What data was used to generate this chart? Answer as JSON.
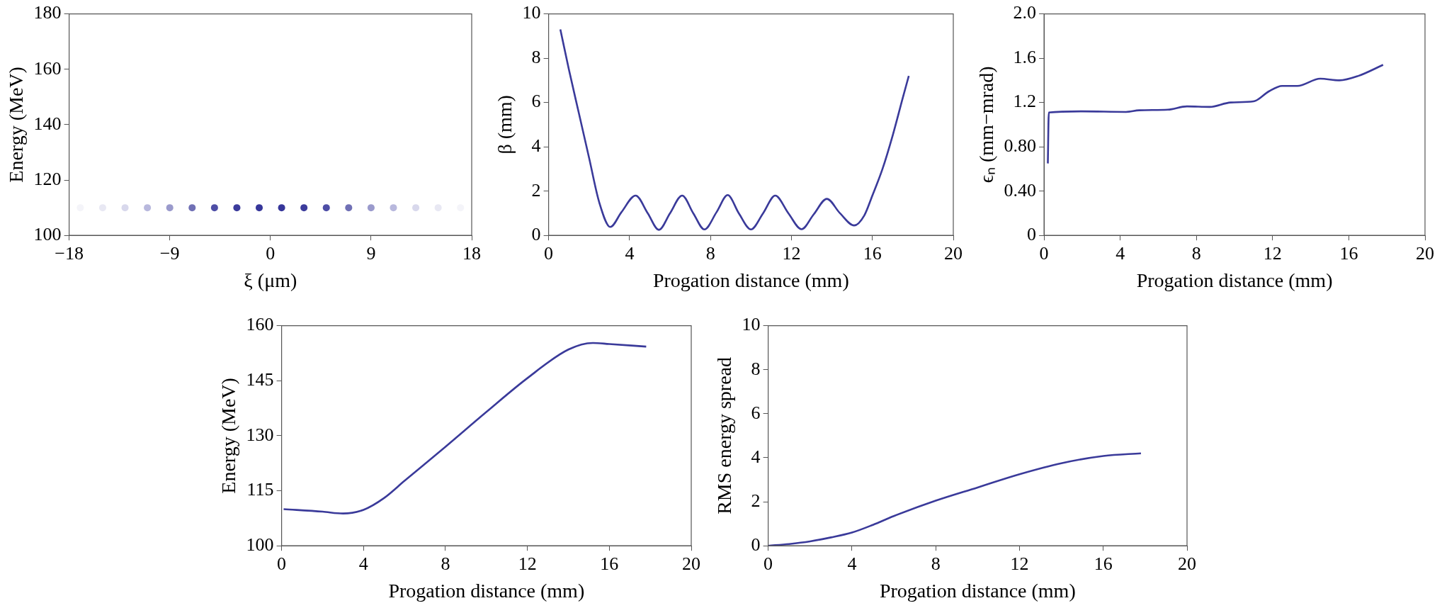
{
  "chart_data": [
    {
      "type": "scatter",
      "xlabel": "ξ (μm)",
      "ylabel": "Energy (MeV)",
      "marker": "circle",
      "x": [
        -17,
        -15,
        -13,
        -11,
        -9,
        -7,
        -5,
        -3,
        -1,
        1,
        3,
        5,
        7,
        9,
        11,
        13,
        15,
        17
      ],
      "values": [
        110,
        110,
        110,
        110,
        110,
        110,
        110,
        110,
        110,
        110,
        110,
        110,
        110,
        110,
        110,
        110,
        110,
        110
      ],
      "colors": [
        "#f4f4f9",
        "#e8e8f3",
        "#d8d8ec",
        "#b8b8dd",
        "#9a9acc",
        "#7070b5",
        "#4e4ea6",
        "#3c3c9c",
        "#36369a",
        "#36369a",
        "#3c3c9c",
        "#4e4ea6",
        "#7070b5",
        "#9a9acc",
        "#b8b8dd",
        "#d8d8ec",
        "#e8e8f3",
        "#f4f4f9"
      ],
      "xlim": [
        -18,
        18
      ],
      "xticks": [
        {
          "value": -18,
          "label": "−18"
        },
        {
          "value": -9,
          "label": "−9"
        },
        0,
        9,
        18
      ],
      "ylim": [
        100,
        180
      ],
      "yticks": [
        100,
        120,
        140,
        160,
        180
      ]
    },
    {
      "type": "line",
      "xlabel": "Progation distance (mm)",
      "ylabel": "β (mm)",
      "marker": "none",
      "color": "#3a3a9a",
      "x": [
        0.58,
        1,
        1.5,
        2,
        2.5,
        3.05,
        3.6,
        4.3,
        4.9,
        5.45,
        6,
        6.6,
        7.15,
        7.7,
        8.3,
        8.85,
        9.4,
        10,
        10.6,
        11.2,
        11.85,
        12.5,
        13.1,
        13.75,
        14.4,
        15.1,
        15.6,
        16,
        16.5,
        17,
        17.5,
        17.8
      ],
      "values": [
        9.3,
        7.5,
        5.5,
        3.5,
        1.5,
        0.38,
        1.05,
        1.8,
        1.0,
        0.25,
        1.0,
        1.8,
        1.0,
        0.27,
        1.05,
        1.82,
        1.0,
        0.27,
        1.0,
        1.8,
        1.0,
        0.28,
        0.95,
        1.65,
        1.0,
        0.45,
        0.9,
        1.8,
        3.0,
        4.5,
        6.2,
        7.2
      ],
      "xlim": [
        0,
        20
      ],
      "xticks": [
        0,
        4,
        8,
        12,
        16,
        20
      ],
      "ylim": [
        0,
        10
      ],
      "yticks": [
        0,
        2,
        4,
        6,
        8,
        10
      ]
    },
    {
      "type": "line",
      "xlabel": "Progation distance (mm)",
      "ylabel": "ϵₙ (mm−mrad)",
      "marker": "none",
      "color": "#3a3a9a",
      "x": [
        0.2,
        0.25,
        2,
        4.3,
        5,
        6.5,
        7.5,
        8.7,
        9.8,
        11,
        11.8,
        12.5,
        13.3,
        14.5,
        15.5,
        16.5,
        17.8
      ],
      "values": [
        0.65,
        1.11,
        1.12,
        1.115,
        1.13,
        1.135,
        1.165,
        1.16,
        1.2,
        1.21,
        1.3,
        1.35,
        1.35,
        1.415,
        1.4,
        1.44,
        1.54
      ],
      "xlim": [
        0,
        20
      ],
      "xticks": [
        0,
        4,
        8,
        12,
        16,
        20
      ],
      "ylim": [
        0,
        2
      ],
      "yticks": [
        0,
        {
          "value": 0.4,
          "label": "0.40"
        },
        {
          "value": 0.8,
          "label": "0.80"
        },
        {
          "value": 1.2,
          "label": "1.2"
        },
        {
          "value": 1.6,
          "label": "1.6"
        },
        {
          "value": 2,
          "label": "2.0"
        }
      ]
    },
    {
      "type": "line",
      "xlabel": "Progation distance (mm)",
      "ylabel": "Energy (MeV)",
      "marker": "none",
      "color": "#3a3a9a",
      "x": [
        0.1,
        2,
        3,
        4,
        5,
        6,
        8,
        10,
        12,
        14,
        15.2,
        16,
        17.8
      ],
      "values": [
        110,
        109.3,
        108.8,
        109.8,
        113,
        117.7,
        127,
        136.5,
        145.7,
        153.5,
        155.3,
        155,
        154.3
      ],
      "xlim": [
        0,
        20
      ],
      "xticks": [
        0,
        4,
        8,
        12,
        16,
        20
      ],
      "ylim": [
        100,
        160
      ],
      "yticks": [
        100,
        115,
        130,
        145,
        160
      ]
    },
    {
      "type": "line",
      "xlabel": "Progation distance (mm)",
      "ylabel": "RMS energy spread",
      "marker": "none",
      "color": "#3a3a9a",
      "x": [
        0,
        1,
        2,
        3,
        4,
        5,
        6,
        8,
        10,
        12,
        14,
        16,
        17.8
      ],
      "values": [
        0,
        0.08,
        0.2,
        0.38,
        0.6,
        0.95,
        1.35,
        2.05,
        2.65,
        3.25,
        3.75,
        4.08,
        4.2
      ],
      "xlim": [
        0,
        20
      ],
      "xticks": [
        0,
        4,
        8,
        12,
        16,
        20
      ],
      "ylim": [
        0,
        10
      ],
      "yticks": [
        0,
        2,
        4,
        6,
        8,
        10
      ]
    }
  ]
}
